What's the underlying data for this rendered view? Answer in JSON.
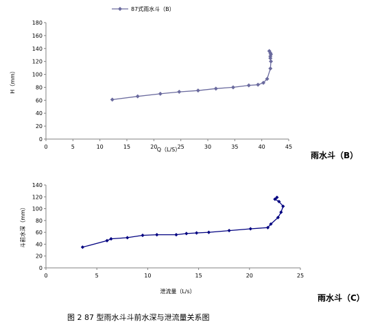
{
  "chart_data": [
    {
      "type": "line",
      "legend": "87式雨水斗（B）",
      "legend_position": "top-left",
      "xlabel": "Q（L/S）",
      "ylabel": "H（mm）",
      "side_label": "雨水斗（B）",
      "xlim": [
        0,
        45
      ],
      "ylim": [
        0,
        180
      ],
      "xticks": [
        "0",
        "5",
        "10",
        "15",
        "20",
        "25",
        "30",
        "35",
        "40",
        "45"
      ],
      "yticks": [
        "0",
        "20",
        "40",
        "60",
        "80",
        "100",
        "120",
        "140",
        "160",
        "180"
      ],
      "color": "#6a6a9e",
      "series": [
        {
          "name": "87式雨水斗（B）",
          "x": [
            12.3,
            17,
            21.2,
            24.7,
            28.2,
            31.5,
            34.7,
            37.6,
            39.3,
            40.3,
            41,
            41.6,
            41.7,
            41.6,
            41.6,
            41.7,
            41.6,
            41.4
          ],
          "y": [
            61,
            66,
            70,
            73,
            75,
            78,
            80,
            83,
            84,
            87,
            93,
            109,
            120,
            125,
            128,
            131,
            133,
            136
          ]
        }
      ]
    },
    {
      "type": "line",
      "xlabel": "泄流量（L/s）",
      "ylabel": "斗前水深（mm）",
      "side_label": "雨水斗（C）",
      "xlim": [
        0,
        25
      ],
      "ylim": [
        0,
        140
      ],
      "xticks": [
        "0",
        "5",
        "10",
        "15",
        "20",
        "25"
      ],
      "yticks": [
        "0",
        "20",
        "40",
        "60",
        "80",
        "100",
        "120",
        "140"
      ],
      "color": "#000080",
      "series": [
        {
          "x": [
            3.6,
            6,
            6.4,
            8,
            9.5,
            10.9,
            12.8,
            13.8,
            14.8,
            16,
            18,
            20.1,
            21.8,
            22.1,
            22.8,
            23.1,
            23.3,
            22.9,
            22.5,
            22.7
          ],
          "y": [
            35,
            46,
            49,
            51,
            55,
            56,
            56,
            58,
            59,
            60,
            63,
            66,
            68,
            74,
            85,
            94,
            104,
            112,
            116,
            119
          ]
        }
      ]
    }
  ],
  "caption": "图 2    87 型雨水斗斗前水深与泄流量关系图"
}
